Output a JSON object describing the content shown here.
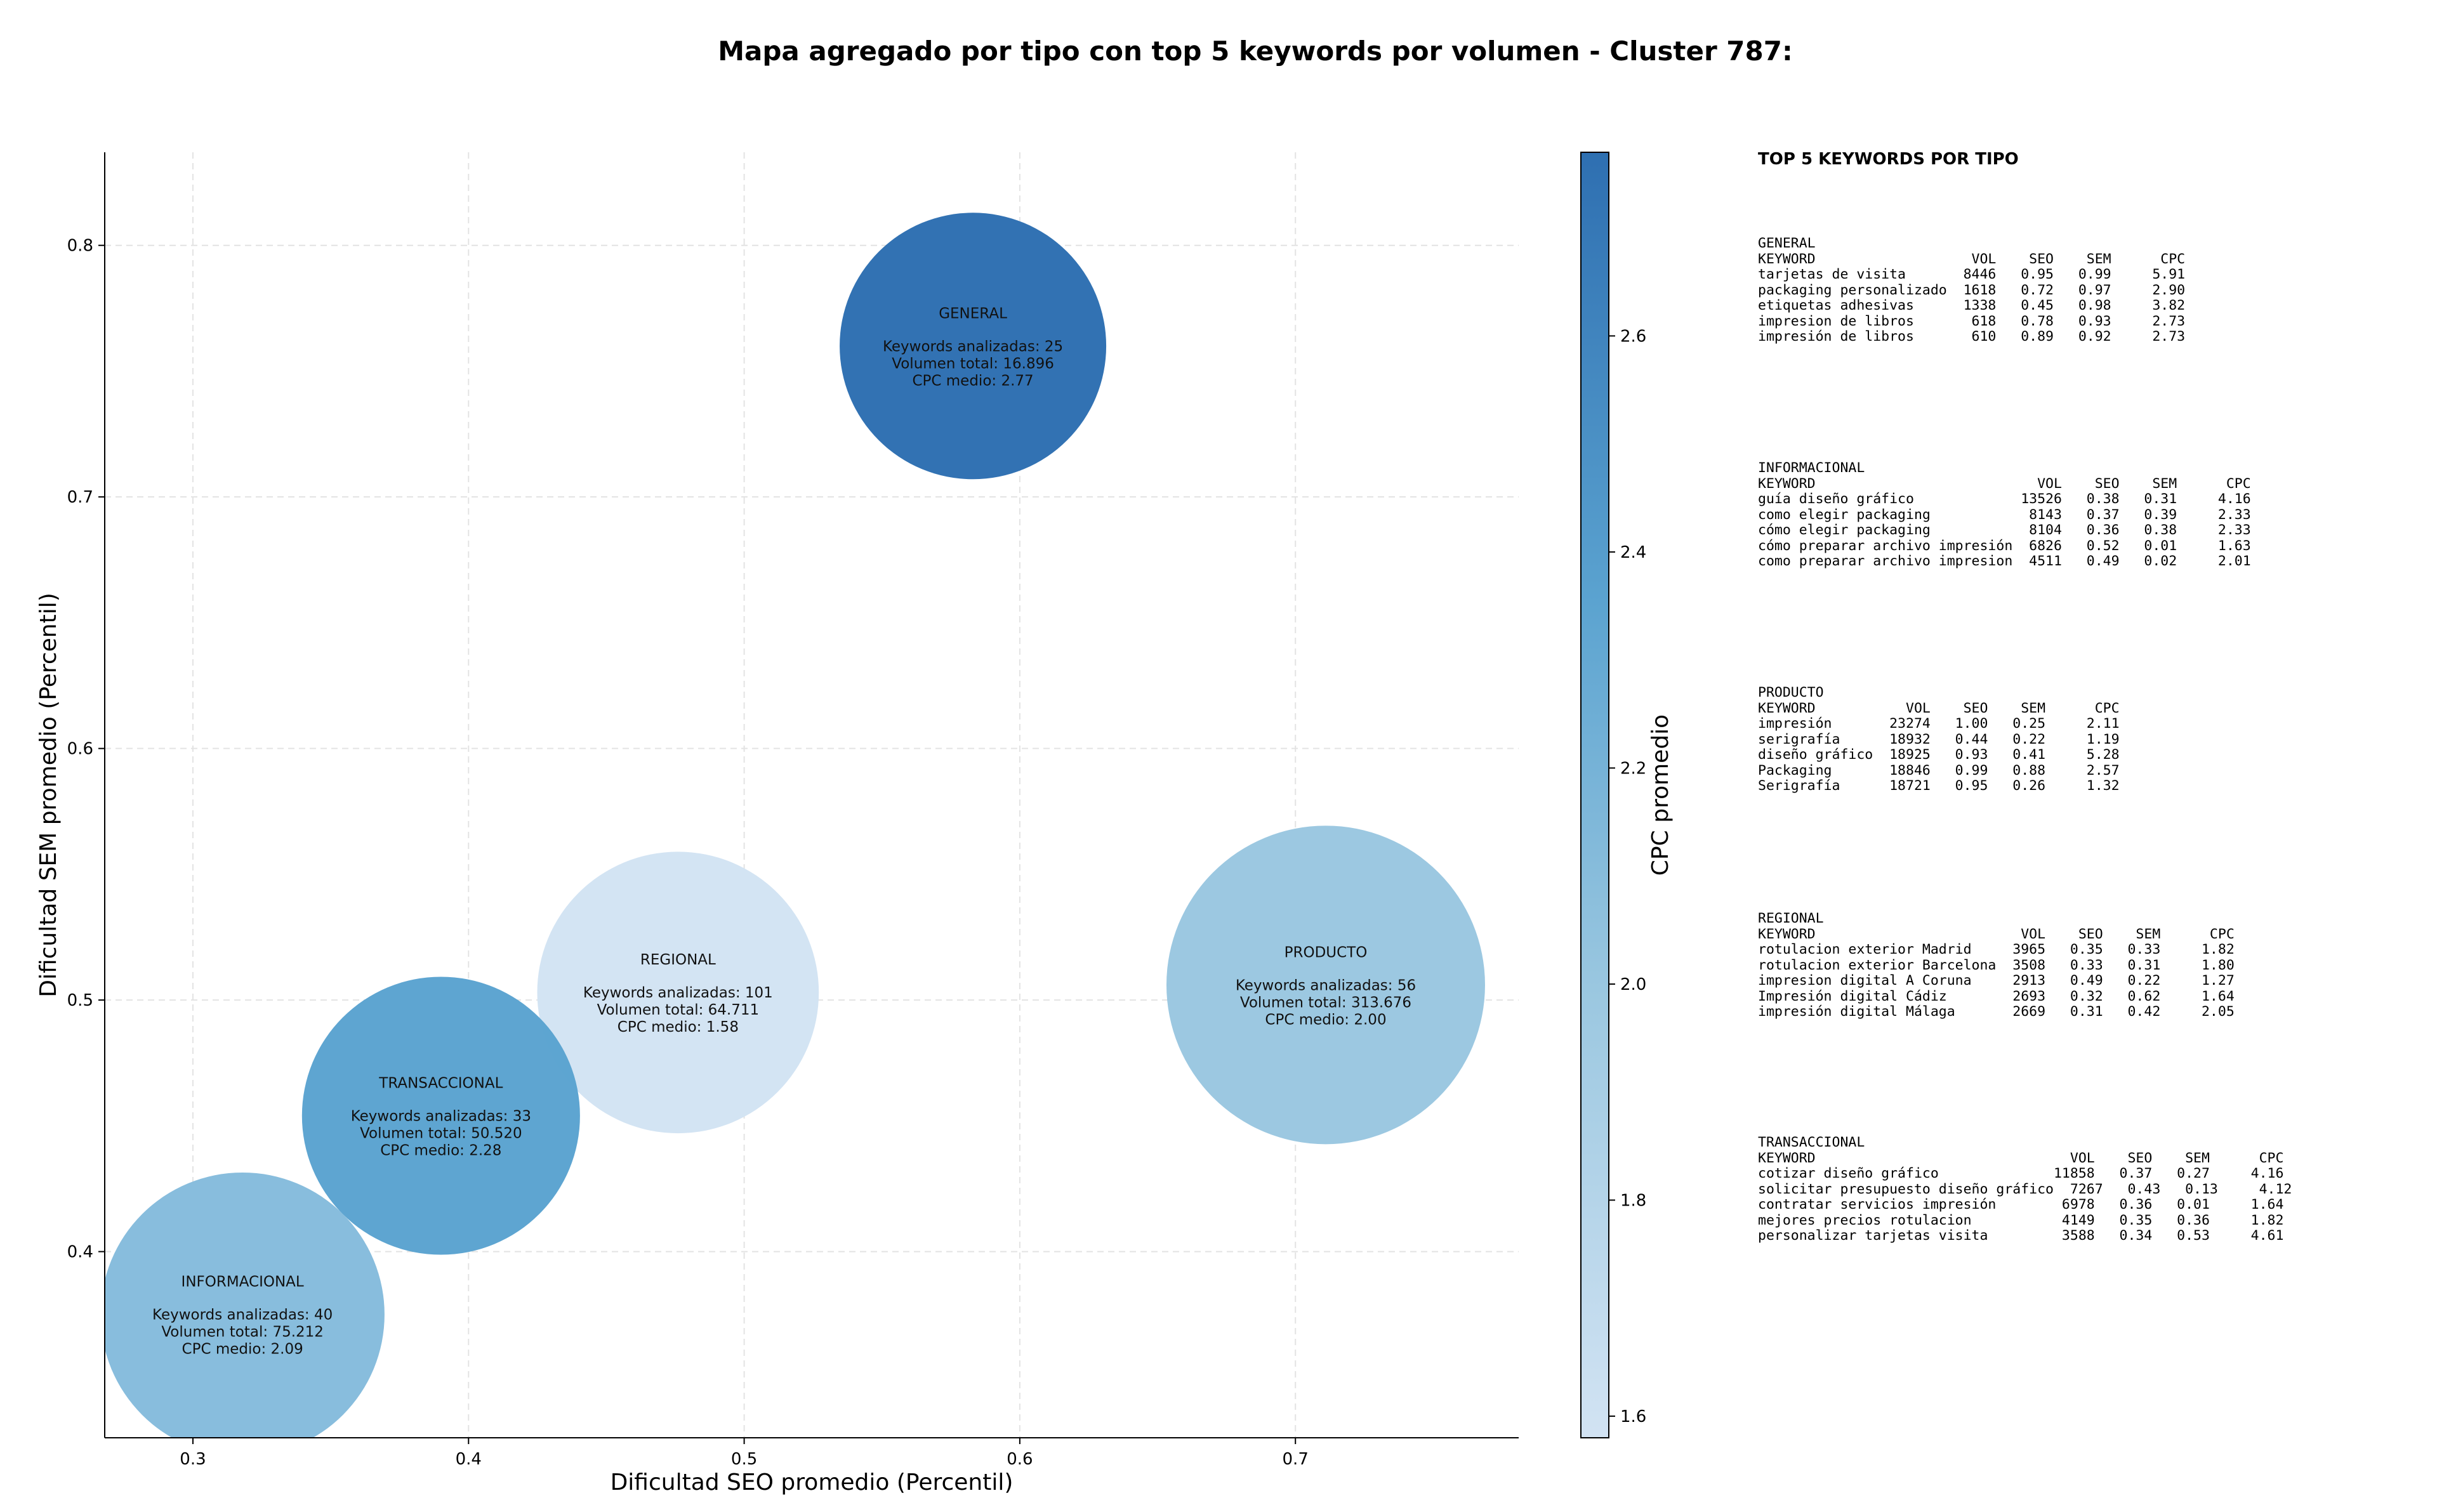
{
  "chart_data": {
    "type": "scatter",
    "title": "Mapa agregado por tipo con top 5 keywords por volumen - Cluster 787:",
    "xlabel": "Dificultad SEO promedio (Percentil)",
    "ylabel": "Dificultad SEM promedio (Percentil)",
    "xlim": [
      0.268,
      0.781
    ],
    "ylim": [
      0.326,
      0.837
    ],
    "xticks": [
      "0.3",
      "0.4",
      "0.5",
      "0.6",
      "0.7"
    ],
    "yticks": [
      "0.4",
      "0.5",
      "0.6",
      "0.7",
      "0.8"
    ],
    "grid": true,
    "colorbar": {
      "label": "CPC promedio",
      "min": 1.58,
      "max": 2.77,
      "ticks": [
        "1.6",
        "1.8",
        "2.0",
        "2.2",
        "2.4",
        "2.6"
      ]
    },
    "points": [
      {
        "name": "GENERAL",
        "x": 0.583,
        "y": 0.76,
        "keywords": 25,
        "volume": 16896,
        "cpc": 2.77,
        "color": "#2e6fb1",
        "label_kw": "Keywords analizadas: 25",
        "label_vol": "Volumen total: 16.896",
        "label_cpc": "CPC medio: 2.77"
      },
      {
        "name": "PRODUCTO",
        "x": 0.711,
        "y": 0.506,
        "keywords": 56,
        "volume": 313676,
        "cpc": 2.0,
        "color": "#9ac7e0",
        "label_kw": "Keywords analizadas: 56",
        "label_vol": "Volumen total: 313.676",
        "label_cpc": "CPC medio: 2.00"
      },
      {
        "name": "REGIONAL",
        "x": 0.476,
        "y": 0.503,
        "keywords": 101,
        "volume": 64711,
        "cpc": 1.58,
        "color": "#d2e3f3",
        "label_kw": "Keywords analizadas: 101",
        "label_vol": "Volumen total: 64.711",
        "label_cpc": "CPC medio: 1.58"
      },
      {
        "name": "TRANSACCIONAL",
        "x": 0.39,
        "y": 0.454,
        "keywords": 33,
        "volume": 50520,
        "cpc": 2.28,
        "color": "#5ba3d0",
        "label_kw": "Keywords analizadas: 33",
        "label_vol": "Volumen total: 50.520",
        "label_cpc": "CPC medio: 2.28"
      },
      {
        "name": "INFORMACIONAL",
        "x": 0.318,
        "y": 0.375,
        "keywords": 40,
        "volume": 75212,
        "cpc": 2.09,
        "color": "#86bcdc",
        "label_kw": "Keywords analizadas: 40",
        "label_vol": "Volumen total: 75.212",
        "label_cpc": "CPC medio: 2.09"
      }
    ]
  },
  "side_panel": {
    "title": "TOP 5 KEYWORDS POR TIPO",
    "groups": [
      {
        "name": "GENERAL",
        "lines": [
          "GENERAL",
          "KEYWORD                   VOL    SEO    SEM      CPC",
          "tarjetas de visita       8446   0.95   0.99     5.91",
          "packaging personalizado  1618   0.72   0.97     2.90",
          "etiquetas adhesivas      1338   0.45   0.98     3.82",
          "impresion de libros       618   0.78   0.93     2.73",
          "impresión de libros       610   0.89   0.92     2.73"
        ]
      },
      {
        "name": "INFORMACIONAL",
        "lines": [
          "INFORMACIONAL",
          "KEYWORD                           VOL    SEO    SEM      CPC",
          "guía diseño gráfico             13526   0.38   0.31     4.16",
          "como elegir packaging            8143   0.37   0.39     2.33",
          "cómo elegir packaging            8104   0.36   0.38     2.33",
          "cómo preparar archivo impresión  6826   0.52   0.01     1.63",
          "como preparar archivo impresion  4511   0.49   0.02     2.01"
        ]
      },
      {
        "name": "PRODUCTO",
        "lines": [
          "PRODUCTO",
          "KEYWORD           VOL    SEO    SEM      CPC",
          "impresión       23274   1.00   0.25     2.11",
          "serigrafía      18932   0.44   0.22     1.19",
          "diseño gráfico  18925   0.93   0.41     5.28",
          "Packaging       18846   0.99   0.88     2.57",
          "Serigrafía      18721   0.95   0.26     1.32"
        ]
      },
      {
        "name": "REGIONAL",
        "lines": [
          "REGIONAL",
          "KEYWORD                         VOL    SEO    SEM      CPC",
          "rotulacion exterior Madrid     3965   0.35   0.33     1.82",
          "rotulacion exterior Barcelona  3508   0.33   0.31     1.80",
          "impresion digital A Coruna     2913   0.49   0.22     1.27",
          "Impresión digital Cádiz        2693   0.32   0.62     1.64",
          "impresión digital Málaga       2669   0.31   0.42     2.05"
        ]
      },
      {
        "name": "TRANSACCIONAL",
        "lines": [
          "TRANSACCIONAL",
          "KEYWORD                               VOL    SEO    SEM      CPC",
          "cotizar diseño gráfico              11858   0.37   0.27     4.16",
          "solicitar presupuesto diseño gráfico  7267   0.43   0.13     4.12",
          "contratar servicios impresión        6978   0.36   0.01     1.64",
          "mejores precios rotulacion           4149   0.35   0.36     1.82",
          "personalizar tarjetas visita         3588   0.34   0.53     4.61"
        ]
      }
    ]
  }
}
